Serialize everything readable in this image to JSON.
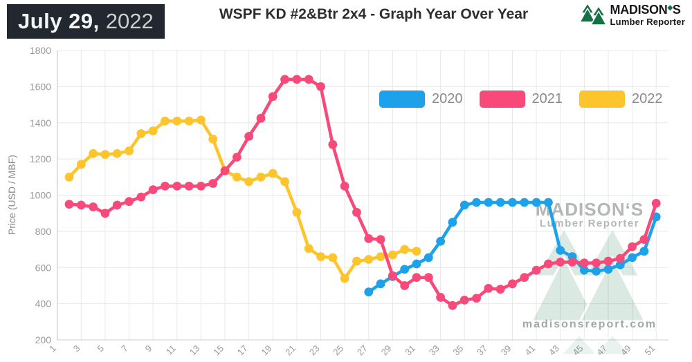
{
  "header": {
    "date_label": "July 29,",
    "date_year": "2022",
    "title": "WSPF KD #2&Btr 2x4 - Graph Year Over Year"
  },
  "brand": {
    "name_prefix": "MADISON",
    "accent_char": "◆",
    "name_suffix": "S",
    "tagline": "Lumber Reporter",
    "green": "#156f48"
  },
  "watermark": {
    "line1": "MADISON‘S",
    "line2": "Lumber Reporter",
    "url": "madisonsreport.com"
  },
  "chart_data": {
    "type": "line",
    "title": "WSPF KD #2&Btr 2x4 - Graph Year Over Year",
    "xlabel": "",
    "ylabel": "Price (USD / MBF)",
    "ylim": [
      200,
      1800
    ],
    "ytick_step": 200,
    "xticks": [
      1,
      3,
      5,
      7,
      9,
      11,
      13,
      15,
      17,
      19,
      21,
      23,
      25,
      27,
      29,
      31,
      33,
      35,
      37,
      39,
      41,
      43,
      45,
      47,
      49,
      51
    ],
    "x_unit": "week-of-year",
    "grid": true,
    "legend_position": "top-right-inside",
    "marker": "circle",
    "draw_order": [
      2,
      0,
      1
    ],
    "series": [
      {
        "name": "2020",
        "color": "#1da1e8",
        "start_week": 27,
        "values": [
          465,
          510,
          550,
          590,
          620,
          655,
          745,
          850,
          945,
          960,
          960,
          960,
          960,
          960,
          960,
          960,
          695,
          660,
          585,
          580,
          590,
          615,
          655,
          690,
          880
        ]
      },
      {
        "name": "2021",
        "color": "#f8497b",
        "start_week": 2,
        "values": [
          950,
          945,
          935,
          900,
          945,
          965,
          990,
          1030,
          1050,
          1050,
          1050,
          1050,
          1065,
          1135,
          1210,
          1325,
          1425,
          1545,
          1640,
          1640,
          1640,
          1600,
          1280,
          1050,
          905,
          760,
          755,
          555,
          500,
          545,
          545,
          435,
          390,
          420,
          430,
          485,
          480,
          510,
          545,
          585,
          620,
          630,
          630,
          625,
          625,
          635,
          650,
          715,
          755,
          955
        ]
      },
      {
        "name": "2022",
        "color": "#fcc42d",
        "start_week": 2,
        "values": [
          1100,
          1170,
          1230,
          1225,
          1230,
          1245,
          1340,
          1355,
          1410,
          1410,
          1410,
          1415,
          1310,
          1135,
          1100,
          1075,
          1100,
          1120,
          1075,
          905,
          705,
          660,
          655,
          540,
          635,
          645,
          660,
          670,
          700,
          690
        ]
      }
    ]
  }
}
